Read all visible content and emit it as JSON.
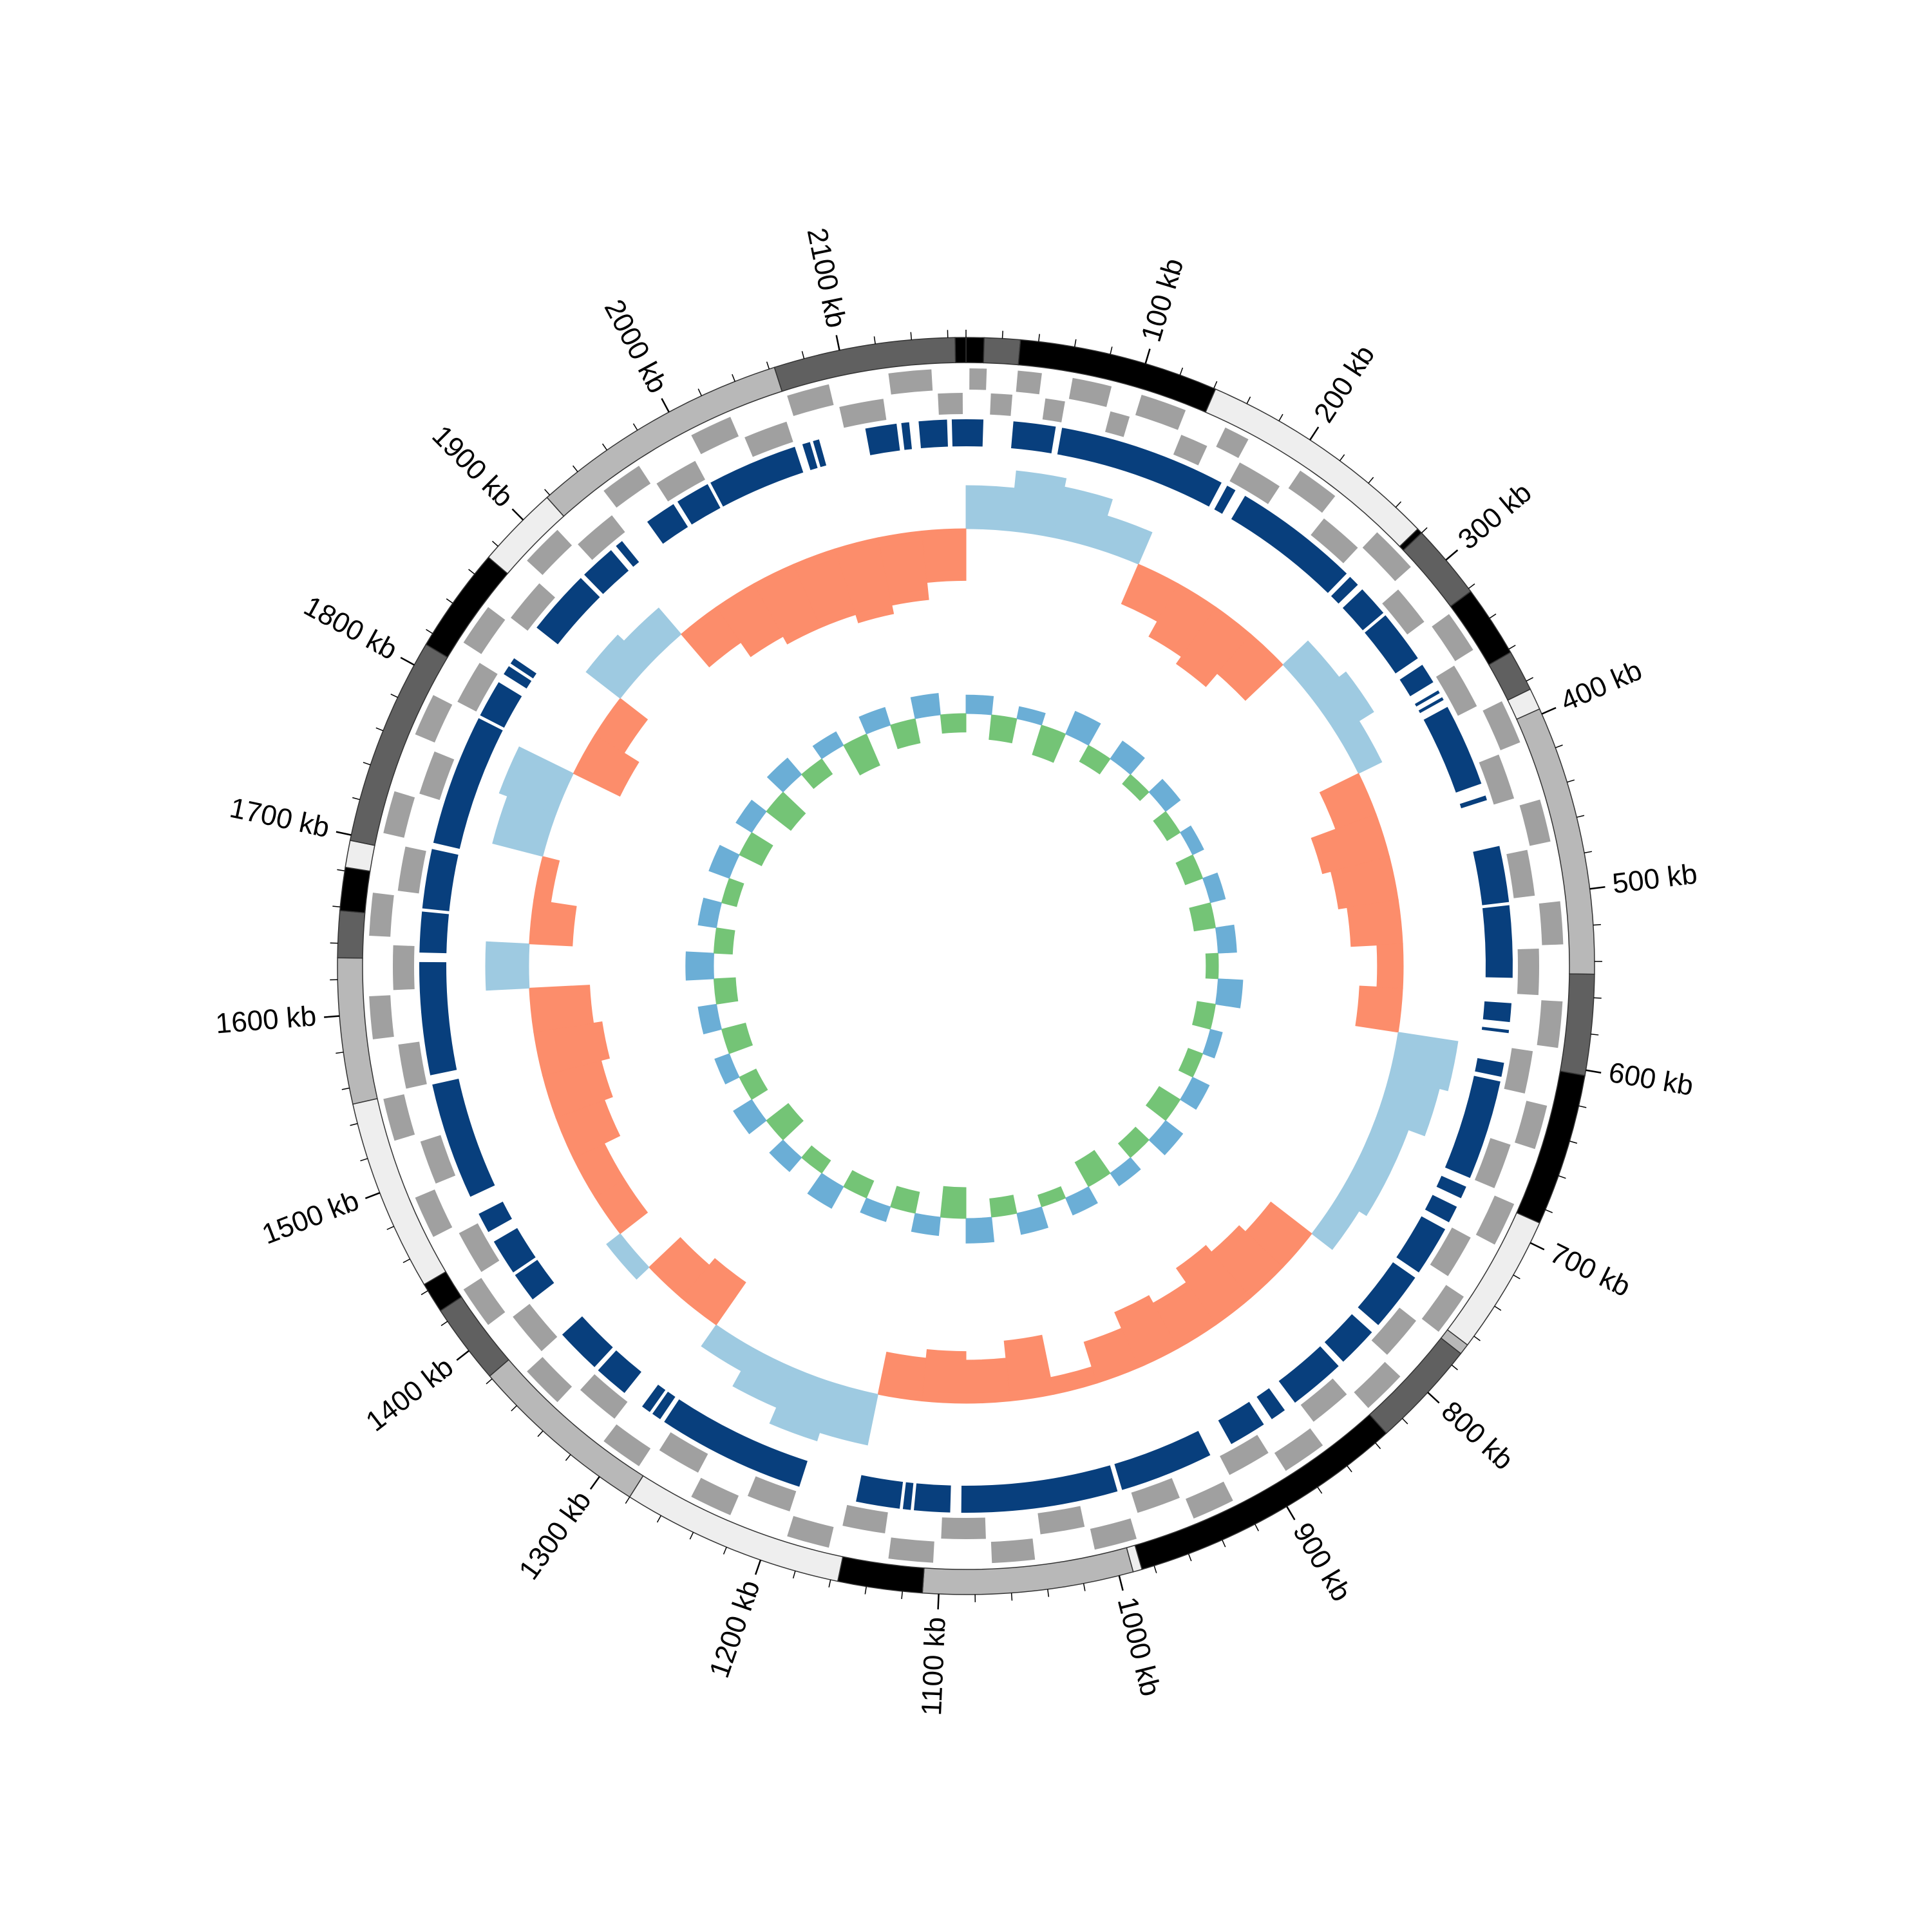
{
  "chart_data": {
    "type": "circular-genome",
    "xlim": [
      0,
      2170
    ],
    "xticks": [
      {
        "value": 100,
        "label": "100 kb"
      },
      {
        "value": 200,
        "label": "200 kb"
      },
      {
        "value": 300,
        "label": "300 kb"
      },
      {
        "value": 400,
        "label": "400 kb"
      },
      {
        "value": 500,
        "label": "500 kb"
      },
      {
        "value": 600,
        "label": "600 kb"
      },
      {
        "value": 700,
        "label": "700 kb"
      },
      {
        "value": 800,
        "label": "800 kb"
      },
      {
        "value": 900,
        "label": "900 kb"
      },
      {
        "value": 1000,
        "label": "1000 kb"
      },
      {
        "value": 1100,
        "label": "1100 kb"
      },
      {
        "value": 1200,
        "label": "1200 kb"
      },
      {
        "value": 1300,
        "label": "1300 kb"
      },
      {
        "value": 1400,
        "label": "1400 kb"
      },
      {
        "value": 1500,
        "label": "1500 kb"
      },
      {
        "value": 1600,
        "label": "1600 kb"
      },
      {
        "value": 1700,
        "label": "1700 kb"
      },
      {
        "value": 1800,
        "label": "1800 kb"
      },
      {
        "value": 1900,
        "label": "1900 kb"
      },
      {
        "value": 2000,
        "label": "2000 kb"
      },
      {
        "value": 2100,
        "label": "2100 kb"
      }
    ],
    "minor_xticks": [
      0,
      20,
      40,
      60,
      80,
      120,
      140,
      160,
      180,
      220,
      240,
      260,
      280,
      320,
      340,
      360,
      380,
      420,
      440,
      460,
      480,
      520,
      540,
      560,
      580,
      620,
      640,
      660,
      680,
      720,
      740,
      760,
      780,
      820,
      840,
      860,
      880,
      920,
      940,
      960,
      980,
      1020,
      1040,
      1060,
      1080,
      1120,
      1140,
      1160,
      1180,
      1220,
      1240,
      1260,
      1280,
      1320,
      1340,
      1360,
      1380,
      1420,
      1440,
      1460,
      1480,
      1520,
      1540,
      1560,
      1580,
      1620,
      1640,
      1660,
      1680,
      1720,
      1740,
      1760,
      1780,
      1820,
      1840,
      1860,
      1880,
      1920,
      1940,
      1960,
      1980,
      2020,
      2040,
      2060,
      2080,
      2120,
      2140,
      2160
    ],
    "contigs": [
      {
        "start": 0,
        "end": 10,
        "color": "#000000"
      },
      {
        "start": 10,
        "end": 30,
        "color": "#606060"
      },
      {
        "start": 30,
        "end": 141,
        "color": "#000000"
      },
      {
        "start": 141,
        "end": 277,
        "color": "#eeeeee"
      },
      {
        "start": 277,
        "end": 280,
        "color": "#000000"
      },
      {
        "start": 280,
        "end": 322,
        "color": "#606060"
      },
      {
        "start": 322,
        "end": 362,
        "color": "#000000"
      },
      {
        "start": 362,
        "end": 385,
        "color": "#606060"
      },
      {
        "start": 385,
        "end": 397,
        "color": "#eeeeee"
      },
      {
        "start": 397,
        "end": 547,
        "color": "#b8b8b8"
      },
      {
        "start": 547,
        "end": 603,
        "color": "#606060"
      },
      {
        "start": 603,
        "end": 688,
        "color": "#000000"
      },
      {
        "start": 688,
        "end": 766,
        "color": "#eeeeee"
      },
      {
        "start": 766,
        "end": 772,
        "color": "#b8b8b8"
      },
      {
        "start": 772,
        "end": 832,
        "color": "#606060"
      },
      {
        "start": 832,
        "end": 987,
        "color": "#000000"
      },
      {
        "start": 987,
        "end": 992,
        "color": "#eeeeee"
      },
      {
        "start": 992,
        "end": 1109,
        "color": "#b8b8b8"
      },
      {
        "start": 1109,
        "end": 1156,
        "color": "#000000"
      },
      {
        "start": 1156,
        "end": 1280,
        "color": "#eeeeee"
      },
      {
        "start": 1280,
        "end": 1382,
        "color": "#b8b8b8"
      },
      {
        "start": 1382,
        "end": 1427,
        "color": "#606060"
      },
      {
        "start": 1427,
        "end": 1444,
        "color": "#000000"
      },
      {
        "start": 1444,
        "end": 1551,
        "color": "#eeeeee"
      },
      {
        "start": 1551,
        "end": 1632,
        "color": "#b8b8b8"
      },
      {
        "start": 1632,
        "end": 1658,
        "color": "#606060"
      },
      {
        "start": 1658,
        "end": 1682,
        "color": "#000000"
      },
      {
        "start": 1682,
        "end": 1697,
        "color": "#eeeeee"
      },
      {
        "start": 1697,
        "end": 1813,
        "color": "#606060"
      },
      {
        "start": 1813,
        "end": 1872,
        "color": "#000000"
      },
      {
        "start": 1872,
        "end": 1918,
        "color": "#eeeeee"
      },
      {
        "start": 1918,
        "end": 2063,
        "color": "#b8b8b8"
      },
      {
        "start": 2063,
        "end": 2164,
        "color": "#606060"
      },
      {
        "start": 2164,
        "end": 2170,
        "color": "#000000"
      }
    ],
    "genes_color": "#a0a0a0",
    "genes": [
      [
        2,
        12,
        1
      ],
      [
        15,
        28,
        -1
      ],
      [
        30,
        44,
        1
      ],
      [
        48,
        60,
        -1
      ],
      [
        62,
        85,
        1
      ],
      [
        88,
        100,
        -1
      ],
      [
        103,
        130,
        1
      ],
      [
        133,
        150,
        -1
      ],
      [
        155,
        170,
        1
      ],
      [
        172,
        200,
        -1
      ],
      [
        205,
        230,
        1
      ],
      [
        233,
        260,
        -1
      ],
      [
        262,
        290,
        1
      ],
      [
        295,
        320,
        -1
      ],
      [
        325,
        350,
        1
      ],
      [
        352,
        380,
        -1
      ],
      [
        384,
        410,
        1
      ],
      [
        412,
        440,
        -1
      ],
      [
        445,
        470,
        1
      ],
      [
        472,
        500,
        -1
      ],
      [
        505,
        530,
        1
      ],
      [
        532,
        560,
        -1
      ],
      [
        563,
        590,
        1
      ],
      [
        594,
        620,
        -1
      ],
      [
        624,
        650,
        1
      ],
      [
        652,
        680,
        -1
      ],
      [
        684,
        710,
        1
      ],
      [
        713,
        740,
        -1
      ],
      [
        745,
        770,
        1
      ],
      [
        773,
        800,
        -1
      ],
      [
        804,
        830,
        1
      ],
      [
        834,
        860,
        -1
      ],
      [
        864,
        890,
        1
      ],
      [
        893,
        920,
        -1
      ],
      [
        925,
        950,
        1
      ],
      [
        953,
        980,
        -1
      ],
      [
        985,
        1010,
        1
      ],
      [
        1013,
        1040,
        -1
      ],
      [
        1045,
        1070,
        1
      ],
      [
        1073,
        1100,
        -1
      ],
      [
        1104,
        1130,
        1
      ],
      [
        1134,
        1160,
        -1
      ],
      [
        1165,
        1190,
        1
      ],
      [
        1193,
        1220,
        -1
      ],
      [
        1225,
        1250,
        1
      ],
      [
        1253,
        1280,
        -1
      ],
      [
        1285,
        1310,
        1
      ],
      [
        1313,
        1340,
        -1
      ],
      [
        1345,
        1370,
        1
      ],
      [
        1373,
        1400,
        -1
      ],
      [
        1405,
        1430,
        1
      ],
      [
        1433,
        1460,
        -1
      ],
      [
        1465,
        1490,
        1
      ],
      [
        1493,
        1520,
        -1
      ],
      [
        1525,
        1550,
        1
      ],
      [
        1553,
        1580,
        -1
      ],
      [
        1585,
        1610,
        1
      ],
      [
        1613,
        1640,
        -1
      ],
      [
        1645,
        1670,
        1
      ],
      [
        1673,
        1700,
        -1
      ],
      [
        1705,
        1730,
        1
      ],
      [
        1733,
        1760,
        -1
      ],
      [
        1765,
        1790,
        1
      ],
      [
        1793,
        1820,
        -1
      ],
      [
        1825,
        1850,
        1
      ],
      [
        1853,
        1880,
        -1
      ],
      [
        1885,
        1910,
        1
      ],
      [
        1913,
        1940,
        -1
      ],
      [
        1945,
        1970,
        1
      ],
      [
        1973,
        2000,
        -1
      ],
      [
        2005,
        2030,
        1
      ],
      [
        2033,
        2060,
        -1
      ],
      [
        2065,
        2090,
        1
      ],
      [
        2093,
        2120,
        -1
      ],
      [
        2125,
        2150,
        1
      ],
      [
        2153,
        2168,
        -1
      ]
    ],
    "blocks_color": "#083f7d",
    "blocks": [
      [
        2106,
        2126
      ],
      [
        2129,
        2134
      ],
      [
        2140,
        2158
      ],
      [
        2161,
        2170
      ],
      [
        0,
        11
      ],
      [
        30,
        57
      ],
      [
        61,
        168
      ],
      [
        172,
        178
      ],
      [
        185,
        266
      ],
      [
        269,
        276
      ],
      [
        280,
        300
      ],
      [
        302,
        336
      ],
      [
        341,
        354
      ],
      [
        360,
        362
      ],
      [
        365,
        367
      ],
      [
        372,
        425
      ],
      [
        433,
        436
      ],
      [
        466,
        502
      ],
      [
        504,
        550
      ],
      [
        566,
        578
      ],
      [
        583,
        585
      ],
      [
        604,
        613
      ],
      [
        616,
        680
      ],
      [
        686,
        694
      ],
      [
        700,
        711
      ],
      [
        716,
        748
      ],
      [
        752,
        790
      ],
      [
        796,
        822
      ],
      [
        826,
        862
      ],
      [
        870,
        880
      ],
      [
        886,
        910
      ],
      [
        925,
        985
      ],
      [
        988,
        1088
      ],
      [
        1095,
        1118
      ],
      [
        1120,
        1125
      ],
      [
        1127,
        1155
      ],
      [
        1192,
        1287
      ],
      [
        1290,
        1296
      ],
      [
        1298,
        1304
      ],
      [
        1318,
        1340
      ],
      [
        1343,
        1372
      ],
      [
        1401,
        1420
      ],
      [
        1422,
        1445
      ],
      [
        1452,
        1465
      ],
      [
        1477,
        1552
      ],
      [
        1558,
        1630
      ],
      [
        1636,
        1662
      ],
      [
        1664,
        1702
      ],
      [
        1706,
        1790
      ],
      [
        1792,
        1816
      ],
      [
        1822,
        1828
      ],
      [
        1830,
        1834
      ],
      [
        1858,
        1900
      ],
      [
        1903,
        1926
      ],
      [
        1930,
        1935
      ],
      [
        1955,
        1975
      ],
      [
        1978,
        2000
      ],
      [
        2002,
        2060
      ],
      [
        2065,
        2070
      ],
      [
        2072,
        2076
      ]
    ],
    "bins": [
      0,
      35,
      70,
      105,
      140,
      175,
      210,
      245,
      280,
      315,
      350,
      385,
      420,
      455,
      490,
      525,
      560,
      595,
      630,
      665,
      700,
      735,
      770,
      805,
      840,
      875,
      910,
      945,
      980,
      1015,
      1050,
      1085,
      1120,
      1155,
      1190,
      1225,
      1260,
      1295,
      1330,
      1365,
      1400,
      1435,
      1470,
      1505,
      1540,
      1575,
      1610,
      1645,
      1680,
      1715,
      1750,
      1785,
      1820,
      1855,
      1890,
      1925,
      1960,
      1995,
      2030,
      2065,
      2100,
      2135,
      2170
    ],
    "gc_content": {
      "positive_color": "#9ecae1",
      "negative_color": "#fc8d6b",
      "values": [
        0.5,
        0.7,
        0.6,
        0.4,
        -0.5,
        -0.7,
        -0.8,
        -0.6,
        0.4,
        0.5,
        0.3,
        -0.5,
        -0.8,
        -0.7,
        -0.6,
        -0.3,
        -0.5,
        0.7,
        0.6,
        0.4,
        0.4,
        0.3,
        -0.6,
        -0.7,
        -0.8,
        -0.6,
        -0.7,
        -0.5,
        -0.2,
        -0.7,
        -0.5,
        -0.6,
        -0.5,
        0.6,
        0.7,
        0.5,
        0.3,
        -0.6,
        -0.5,
        0.2,
        -0.4,
        -0.4,
        -0.6,
        -0.7,
        -0.8,
        -0.7,
        0.5,
        -0.5,
        -0.2,
        0.6,
        0.7,
        -0.6,
        -0.4,
        0.5,
        0.4,
        -0.5,
        -0.7,
        -0.8,
        -0.8,
        -0.9,
        -0.8,
        -0.6
      ]
    },
    "gc_skew": {
      "positive_color": "#6baed6",
      "negative_color": "#74c476",
      "values": [
        0.3,
        -0.4,
        0.2,
        -0.5,
        0.4,
        -0.3,
        0.35,
        -0.2,
        0.3,
        -0.25,
        0.2,
        -0.3,
        0.25,
        -0.35,
        0.3,
        -0.2,
        0.4,
        -0.3,
        0.2,
        -0.25,
        0.3,
        -0.4,
        0.35,
        -0.3,
        0.25,
        -0.45,
        0.3,
        -0.2,
        0.35,
        -0.3,
        0.4,
        -0.5,
        0.3,
        -0.35,
        0.25,
        -0.3,
        0.4,
        -0.25,
        0.3,
        -0.45,
        0.35,
        -0.3,
        0.25,
        -0.4,
        0.3,
        -0.35,
        0.45,
        -0.3,
        0.3,
        -0.25,
        0.35,
        -0.4,
        0.3,
        -0.5,
        0.35,
        -0.3,
        0.25,
        -0.55,
        0.3,
        -0.4,
        0.35,
        -0.3
      ]
    }
  }
}
